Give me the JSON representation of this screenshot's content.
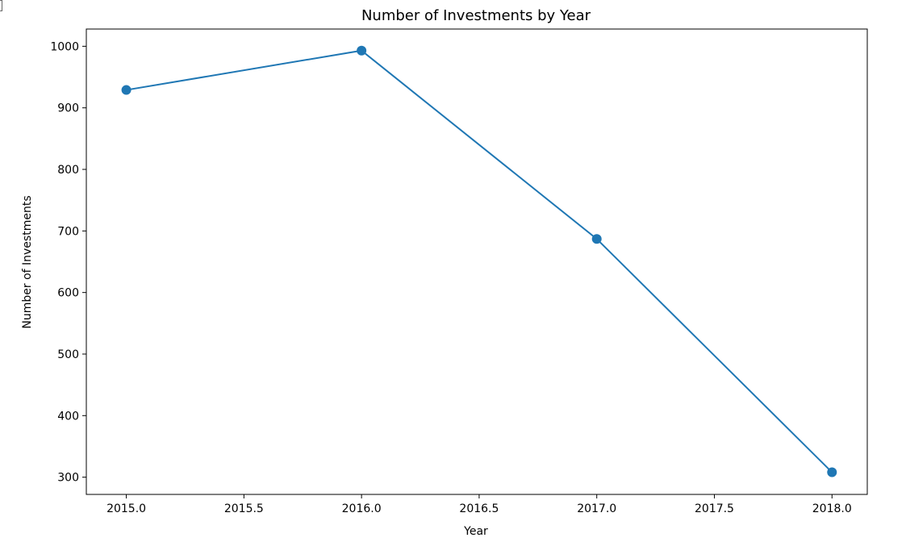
{
  "chart_data": {
    "type": "line",
    "title": "Number of Investments by Year",
    "xlabel": "Year",
    "ylabel": "Number of Investments",
    "xlim": [
      2014.83,
      2018.15
    ],
    "ylim": [
      272,
      1028
    ],
    "x_ticks": [
      2015.0,
      2015.5,
      2016.0,
      2016.5,
      2017.0,
      2017.5,
      2018.0
    ],
    "x_tick_labels": [
      "2015.0",
      "2015.5",
      "2016.0",
      "2016.5",
      "2017.0",
      "2017.5",
      "2018.0"
    ],
    "y_ticks": [
      300,
      400,
      500,
      600,
      700,
      800,
      900,
      1000
    ],
    "y_tick_labels": [
      "300",
      "400",
      "500",
      "600",
      "700",
      "800",
      "900",
      "1000"
    ],
    "grid": false,
    "series": [
      {
        "x": [
          2015,
          2016,
          2017,
          2018
        ],
        "values": [
          929,
          993,
          687,
          308
        ],
        "color": "#1f77b4",
        "marker": "circle"
      }
    ]
  }
}
